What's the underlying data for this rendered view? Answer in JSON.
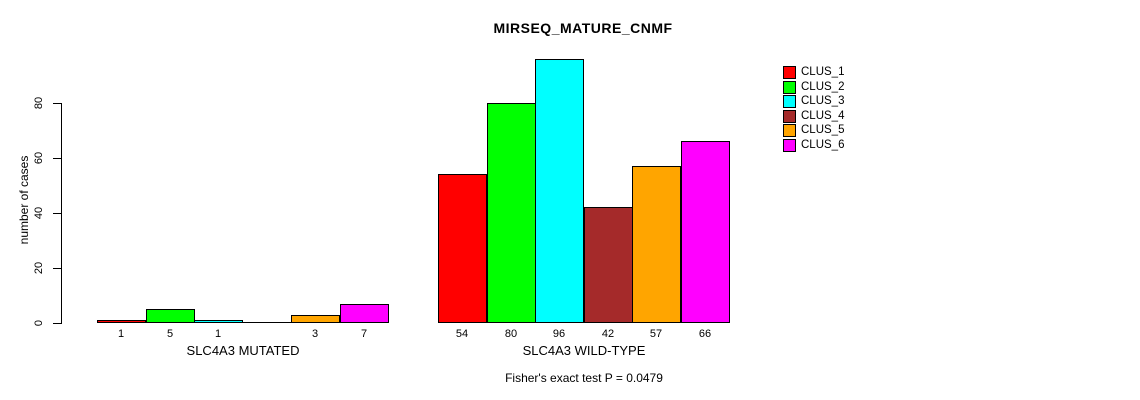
{
  "title": "MIRSEQ_MATURE_CNMF",
  "footer": "Fisher's exact test P = 0.0479",
  "chart_data": {
    "type": "bar",
    "title": "MIRSEQ_MATURE_CNMF",
    "xlabel": "",
    "ylabel": "number of cases",
    "ylim": [
      0,
      96
    ],
    "yticks": [
      0,
      20,
      40,
      60,
      80
    ],
    "grid": false,
    "legend_position": "right",
    "annotation": "Fisher's exact test P = 0.0479",
    "series": [
      {
        "name": "CLUS_1",
        "color": "#FF0000",
        "values": [
          1,
          54
        ]
      },
      {
        "name": "CLUS_2",
        "color": "#00FF00",
        "values": [
          5,
          80
        ]
      },
      {
        "name": "CLUS_3",
        "color": "#00FFFF",
        "values": [
          1,
          96
        ]
      },
      {
        "name": "CLUS_4",
        "color": "#A52A2A",
        "values": [
          0,
          42
        ]
      },
      {
        "name": "CLUS_5",
        "color": "#FFA500",
        "values": [
          3,
          57
        ]
      },
      {
        "name": "CLUS_6",
        "color": "#FF00FF",
        "values": [
          7,
          66
        ]
      }
    ],
    "groups": [
      {
        "label": "SLC4A3 MUTATED",
        "values": [
          1,
          5,
          1,
          0,
          3,
          7
        ]
      },
      {
        "label": "SLC4A3 WILD-TYPE",
        "values": [
          54,
          80,
          96,
          42,
          57,
          66
        ]
      }
    ],
    "bar_value_labels_shown": true,
    "zero_value_labels_hidden": true,
    "axis_color": "#000000",
    "background_color": "#FFFFFF"
  }
}
